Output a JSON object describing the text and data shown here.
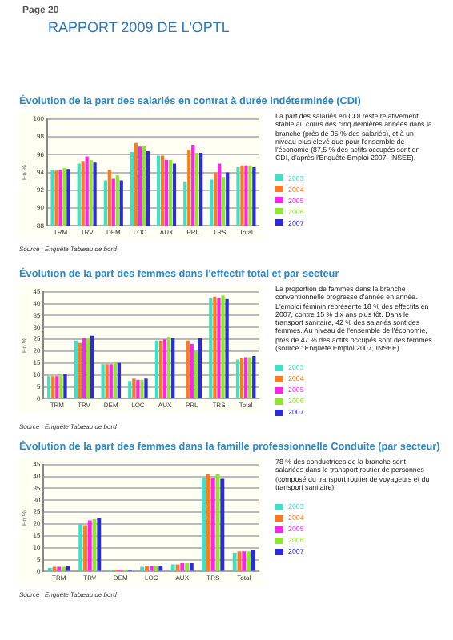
{
  "chart_data": [
    {
      "type": "bar",
      "title": "Évolution de la part des salariés en contrat à durée indéterminée (CDI)",
      "ylabel": "En %",
      "annotations": [
        "Page 20",
        "RAPPORT 2009 DE L'OPTL",
        "La part des salariés en CDI reste relativement stable au cours des cinq dernières années dans la branche (près de 95 % des salariés), et à un niveau plus élevé que pour l'ensemble de l'économie (87,5 % des actifs occupés sont en CDI, d'après l'Enquête Emploi 2007, INSEE).",
        "Source : Enquête Tableau de bord"
      ],
      "categories": [
        "TRM",
        "TRV",
        "DEM",
        "LOC",
        "AUX",
        "PRL",
        "TRS",
        "Total"
      ],
      "series": [
        {
          "name": "2003",
          "color": "#3ee0c8",
          "values": [
            94.3,
            95.0,
            93.1,
            96.3,
            95.9,
            93.0,
            93.2,
            94.6
          ]
        },
        {
          "name": "2004",
          "color": "#ff7a1e",
          "values": [
            94.2,
            95.3,
            94.3,
            97.3,
            95.9,
            96.6,
            94.0,
            94.8
          ]
        },
        {
          "name": "2005",
          "color": "#ff22ee",
          "values": [
            94.3,
            95.8,
            93.3,
            96.9,
            95.4,
            97.1,
            95.0,
            94.8
          ]
        },
        {
          "name": "2006",
          "color": "#8ee82a",
          "values": [
            94.5,
            95.4,
            93.7,
            97.0,
            95.4,
            96.2,
            93.5,
            94.8
          ]
        },
        {
          "name": "2007",
          "color": "#2a2ae0",
          "values": [
            94.4,
            95.1,
            93.1,
            96.4,
            95.0,
            96.2,
            94.0,
            94.6
          ]
        }
      ],
      "ylim": [
        88,
        100
      ],
      "yticks": [
        88,
        90,
        92,
        94,
        96,
        98,
        100
      ],
      "grid": "y",
      "legend": "right"
    },
    {
      "type": "bar",
      "title": "Évolution de la part des femmes dans l'effectif total et par secteur",
      "ylabel": "En %",
      "annotations": [
        "La proportion de femmes dans la branche conventionnelle progresse d'année en année. L'emploi féminin représente 18 % des effectifs en 2007, contre 15 % dix ans plus tôt. Dans le transport sanitaire, 42 % des salariés sont des femmes. Au niveau de l'ensemble de l'économie, près de 47 % des actifs occupés sont des femmes (source : Enquête Emploi 2007, INSEE).",
        "Source : Enquête Tableau de bord"
      ],
      "categories": [
        "TRM",
        "TRV",
        "DEM",
        "LOC",
        "AUX",
        "PRL",
        "TRS",
        "Total"
      ],
      "series": [
        {
          "name": "2003",
          "color": "#3ee0c8",
          "values": [
            9.5,
            24.5,
            14.5,
            7.5,
            24.5,
            null,
            42.5,
            16.5
          ]
        },
        {
          "name": "2004",
          "color": "#ff7a1e",
          "values": [
            9.5,
            23.5,
            14.5,
            8.5,
            24.5,
            24.5,
            43,
            17
          ]
        },
        {
          "name": "2005",
          "color": "#ff22ee",
          "values": [
            9.5,
            25.5,
            14.5,
            8,
            25,
            23,
            42.5,
            17.5
          ]
        },
        {
          "name": "2006",
          "color": "#8ee82a",
          "values": [
            10,
            25.5,
            15.5,
            8,
            26,
            20,
            43.5,
            17.5
          ]
        },
        {
          "name": "2007",
          "color": "#2a2ae0",
          "values": [
            10.5,
            26.5,
            15,
            8.5,
            25.5,
            25.5,
            42,
            18
          ]
        }
      ],
      "ylim": [
        0,
        45
      ],
      "yticks": [
        0,
        5,
        10,
        15,
        20,
        25,
        30,
        35,
        40,
        45
      ],
      "grid": "y",
      "legend": "right"
    },
    {
      "type": "bar",
      "title": "Évolution de la part des femmes dans la famille professionnelle Conduite (par secteur)",
      "ylabel": "En %",
      "annotations": [
        "78 % des conductrices de la branche sont salariées dans le transport routier de personnes (composé du transport routier de voyageurs et du transport sanitaire).",
        "Source : Enquête Tableau de bord"
      ],
      "categories": [
        "TRM",
        "TRV",
        "DEM",
        "LOC",
        "AUX",
        "TRS",
        "Total"
      ],
      "series": [
        {
          "name": "2003",
          "color": "#3ee0c8",
          "values": [
            1.5,
            20,
            0.8,
            2,
            3,
            39.5,
            8
          ]
        },
        {
          "name": "2004",
          "color": "#ff7a1e",
          "values": [
            2,
            19.5,
            0.8,
            2.5,
            3,
            41,
            8.5
          ]
        },
        {
          "name": "2005",
          "color": "#ff22ee",
          "values": [
            2,
            21.5,
            0.8,
            2.5,
            3.5,
            39.5,
            8.5
          ]
        },
        {
          "name": "2006",
          "color": "#8ee82a",
          "values": [
            2,
            22,
            0.8,
            2.5,
            3.5,
            41,
            8.5
          ]
        },
        {
          "name": "2007",
          "color": "#2a2ae0",
          "values": [
            2.5,
            22.5,
            0.8,
            2.5,
            3.5,
            39,
            9
          ]
        }
      ],
      "ylim": [
        0,
        45
      ],
      "yticks": [
        0,
        5,
        10,
        15,
        20,
        25,
        30,
        35,
        40,
        45
      ],
      "grid": "y",
      "legend": "right"
    }
  ]
}
